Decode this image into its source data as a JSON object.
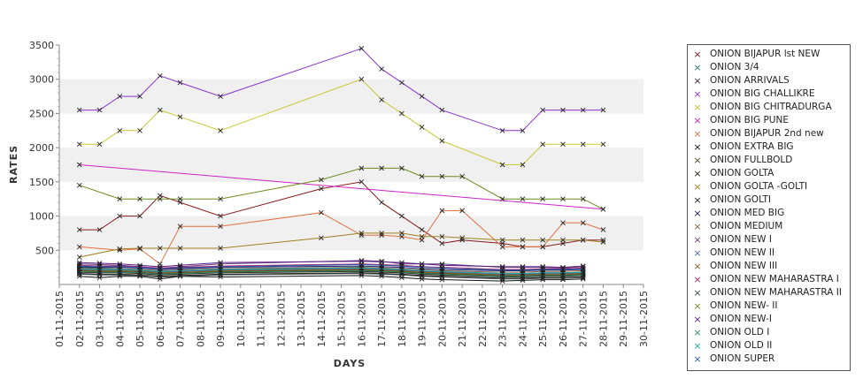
{
  "chart_data": {
    "type": "line",
    "title": "",
    "xlabel": "DAYS",
    "ylabel": "RATES",
    "ylim": [
      0,
      3500
    ],
    "yticks": [
      500,
      1000,
      1500,
      2000,
      2500,
      3000,
      3500
    ],
    "y_tick_labels": [
      "500",
      "1000",
      "1500",
      "2000",
      "2500",
      "3000",
      "3500"
    ],
    "x_tick_labels": [
      "01-11-2015",
      "02-11-2015",
      "03-11-2015",
      "04-11-2015",
      "05-11-2015",
      "06-11-2015",
      "07-11-2015",
      "08-11-2015",
      "09-11-2015",
      "10-11-2015",
      "11-11-2015",
      "12-11-2015",
      "13-11-2015",
      "14-11-2015",
      "15-11-2015",
      "16-11-2015",
      "17-11-2015",
      "18-11-2015",
      "19-11-2015",
      "20-11-2015",
      "21-11-2015",
      "22-11-2015",
      "23-11-2015",
      "24-11-2015",
      "25-11-2015",
      "26-11-2015",
      "27-11-2015",
      "28-11-2015",
      "29-11-2015",
      "30-11-2015"
    ],
    "grid": "alternating horizontal bands",
    "legend_position": "right",
    "marker": "x",
    "series": [
      {
        "name": "ONION BIJAPUR lst NEW",
        "color": "#8a1a1a",
        "x": [
          2,
          3,
          4,
          5,
          6,
          7,
          9,
          14,
          16,
          17,
          18,
          19,
          20,
          21,
          23,
          24,
          25,
          26,
          27,
          28
        ],
        "y": [
          800,
          800,
          1000,
          1000,
          1300,
          1200,
          1000,
          1400,
          1500,
          1200,
          1000,
          800,
          600,
          650,
          600,
          550,
          550,
          600,
          650,
          650
        ]
      },
      {
        "name": "ONION 3/4",
        "color": "#2a7a7a",
        "x": [
          2,
          3,
          4,
          5,
          6,
          7,
          9,
          16,
          17,
          18,
          19,
          20,
          23,
          24,
          25,
          26,
          27
        ],
        "y": [
          250,
          240,
          230,
          220,
          200,
          210,
          230,
          250,
          240,
          220,
          200,
          190,
          160,
          160,
          170,
          170,
          180
        ]
      },
      {
        "name": "ONION ARRIVALS",
        "color": "#3a1a3a",
        "x": [
          2,
          3,
          4,
          5,
          6,
          7,
          9,
          16,
          17,
          18,
          19,
          20,
          23,
          24,
          25,
          26,
          27
        ],
        "y": [
          230,
          220,
          210,
          200,
          190,
          200,
          210,
          230,
          220,
          210,
          190,
          180,
          150,
          150,
          160,
          160,
          170
        ]
      },
      {
        "name": "ONION BIG CHALLIKRE",
        "color": "#8833cc",
        "x": [
          2,
          3,
          4,
          5,
          6,
          7,
          9,
          16,
          17,
          18,
          19,
          20,
          23,
          24,
          25,
          26,
          27,
          28
        ],
        "y": [
          2550,
          2550,
          2750,
          2750,
          3050,
          2950,
          2750,
          3450,
          3150,
          2950,
          2750,
          2550,
          2250,
          2250,
          2550,
          2550,
          2550,
          2550
        ]
      },
      {
        "name": "ONION BIG CHITRADURGA",
        "color": "#c8c832",
        "x": [
          2,
          3,
          4,
          5,
          6,
          7,
          9,
          16,
          17,
          18,
          19,
          20,
          23,
          24,
          25,
          26,
          27,
          28
        ],
        "y": [
          2050,
          2050,
          2250,
          2250,
          2550,
          2450,
          2250,
          3000,
          2700,
          2500,
          2300,
          2100,
          1750,
          1750,
          2050,
          2050,
          2050,
          2050
        ]
      },
      {
        "name": "ONION BIG PUNE",
        "color": "#cc22cc",
        "x": [
          2,
          28
        ],
        "y": [
          1750,
          1100
        ]
      },
      {
        "name": "ONION BIJAPUR 2nd new",
        "color": "#e07040",
        "x": [
          2,
          4,
          5,
          6,
          7,
          9,
          14,
          16,
          17,
          18,
          19,
          20,
          21,
          23,
          24,
          25,
          26,
          27,
          28
        ],
        "y": [
          550,
          500,
          520,
          300,
          850,
          850,
          1050,
          720,
          720,
          700,
          650,
          1080,
          1080,
          550,
          550,
          550,
          900,
          900,
          800
        ]
      },
      {
        "name": "ONION EXTRA BIG",
        "color": "#111111",
        "x": [
          2,
          3,
          4,
          5,
          6,
          7,
          9,
          16,
          17,
          18,
          19,
          20,
          23,
          24,
          25,
          26,
          27
        ],
        "y": [
          120,
          100,
          120,
          120,
          80,
          120,
          110,
          130,
          120,
          100,
          80,
          70,
          50,
          60,
          70,
          70,
          80
        ]
      },
      {
        "name": "ONION FULLBOLD",
        "color": "#5a4a1a",
        "x": [
          2,
          3,
          4,
          5,
          6,
          7,
          9,
          16,
          17,
          18,
          19,
          20,
          23,
          24,
          25,
          26,
          27
        ],
        "y": [
          200,
          190,
          190,
          180,
          160,
          170,
          190,
          210,
          200,
          190,
          170,
          160,
          130,
          130,
          140,
          140,
          150
        ]
      },
      {
        "name": "ONION GOLTA",
        "color": "#2a1a0a",
        "x": [
          2,
          3,
          4,
          5,
          6,
          7,
          9,
          16,
          17,
          18,
          19,
          20,
          23,
          24,
          25,
          26,
          27
        ],
        "y": [
          180,
          170,
          170,
          160,
          140,
          150,
          170,
          190,
          180,
          170,
          150,
          140,
          110,
          110,
          120,
          120,
          130
        ]
      },
      {
        "name": "ONION GOLTA -GOLTI",
        "color": "#a08020",
        "x": [
          2,
          4,
          5,
          6,
          7,
          9,
          14,
          16,
          17,
          18,
          19,
          20,
          21,
          23,
          24,
          25,
          26,
          27,
          28
        ],
        "y": [
          400,
          520,
          530,
          530,
          530,
          530,
          680,
          750,
          750,
          750,
          700,
          700,
          680,
          650,
          650,
          650,
          650,
          650,
          620
        ]
      },
      {
        "name": "ONION GOLTI",
        "color": "#1a1a1a",
        "x": [
          2,
          3,
          4,
          5,
          6,
          7,
          9,
          16,
          17,
          18,
          19,
          20,
          23,
          24,
          25,
          26,
          27
        ],
        "y": [
          160,
          150,
          150,
          140,
          120,
          130,
          150,
          170,
          160,
          150,
          130,
          120,
          90,
          90,
          100,
          100,
          110
        ]
      },
      {
        "name": "ONION MED BIG",
        "color": "#1a1a6a",
        "x": [
          2,
          3,
          4,
          5,
          6,
          7,
          9,
          16,
          17,
          18,
          19,
          20,
          23,
          24,
          25,
          26,
          27
        ],
        "y": [
          260,
          250,
          250,
          240,
          220,
          230,
          250,
          270,
          260,
          250,
          230,
          220,
          200,
          200,
          210,
          210,
          220
        ]
      },
      {
        "name": "ONION MEDIUM",
        "color": "#8a5a3a",
        "x": [
          2,
          3,
          4,
          5,
          6,
          7,
          9,
          16,
          17,
          18,
          19,
          20,
          23,
          24,
          25,
          26,
          27
        ],
        "y": [
          240,
          230,
          230,
          220,
          200,
          210,
          230,
          250,
          240,
          230,
          210,
          200,
          180,
          180,
          190,
          190,
          200
        ]
      },
      {
        "name": "ONION NEW I",
        "color": "#6a3a7a",
        "x": [
          2,
          3,
          4,
          5,
          6,
          7,
          9,
          16,
          17,
          18,
          19,
          20,
          23,
          24,
          25,
          26,
          27
        ],
        "y": [
          300,
          290,
          280,
          260,
          240,
          260,
          300,
          350,
          340,
          300,
          300,
          300,
          250,
          250,
          250,
          240,
          260
        ]
      },
      {
        "name": "ONION NEW II",
        "color": "#4a6aaa",
        "x": [
          2,
          3,
          4,
          5,
          6,
          7,
          9,
          16,
          17,
          18,
          19,
          20,
          23,
          24,
          25,
          26,
          27
        ],
        "y": [
          220,
          210,
          210,
          200,
          180,
          190,
          210,
          230,
          220,
          210,
          190,
          180,
          150,
          150,
          160,
          160,
          170
        ]
      },
      {
        "name": "ONION NEW III",
        "color": "#8a5a1a",
        "x": [
          2,
          3,
          4,
          5,
          6,
          7,
          9,
          16,
          17,
          18,
          19,
          20,
          23,
          24,
          25,
          26,
          27
        ],
        "y": [
          210,
          200,
          200,
          190,
          170,
          180,
          200,
          220,
          210,
          200,
          180,
          170,
          140,
          140,
          150,
          150,
          160
        ]
      },
      {
        "name": "ONION NEW MAHARASTRA I",
        "color": "#aa2a6a",
        "x": [
          2,
          3,
          4,
          5,
          6,
          7,
          9,
          16,
          17,
          18,
          19,
          20,
          23,
          24,
          25,
          26,
          27
        ],
        "y": [
          280,
          270,
          270,
          260,
          240,
          250,
          270,
          300,
          290,
          280,
          260,
          250,
          220,
          220,
          230,
          230,
          240
        ]
      },
      {
        "name": "ONION NEW MAHARASTRA II",
        "color": "#3a4a4a",
        "x": [
          2,
          3,
          4,
          5,
          6,
          7,
          9,
          16,
          17,
          18,
          19,
          20,
          23,
          24,
          25,
          26,
          27
        ],
        "y": [
          150,
          140,
          140,
          130,
          110,
          120,
          140,
          160,
          150,
          140,
          120,
          110,
          80,
          80,
          90,
          90,
          100
        ]
      },
      {
        "name": "ONION NEW- II",
        "color": "#6a8a1a",
        "x": [
          2,
          4,
          5,
          6,
          7,
          9,
          14,
          16,
          17,
          18,
          19,
          20,
          21,
          23,
          24,
          25,
          26,
          27,
          28
        ],
        "y": [
          1450,
          1250,
          1250,
          1250,
          1250,
          1250,
          1530,
          1700,
          1700,
          1700,
          1580,
          1580,
          1580,
          1250,
          1250,
          1250,
          1250,
          1250,
          1100
        ]
      },
      {
        "name": "ONION NEW-I",
        "color": "#5a1a8a",
        "x": [
          2,
          3,
          4,
          5,
          6,
          7,
          9,
          16,
          17,
          18,
          19,
          20,
          23,
          24,
          25,
          26,
          27
        ],
        "y": [
          320,
          310,
          300,
          280,
          260,
          280,
          320,
          340,
          330,
          320,
          300,
          280,
          260,
          260,
          260,
          250,
          270
        ]
      },
      {
        "name": "ONION OLD I",
        "color": "#2a8a6a",
        "x": [
          2,
          3,
          4,
          5,
          6,
          7,
          9,
          16,
          17,
          18,
          19,
          20,
          23,
          24,
          25,
          26,
          27
        ],
        "y": [
          190,
          180,
          180,
          170,
          150,
          160,
          180,
          200,
          190,
          180,
          160,
          150,
          120,
          120,
          130,
          130,
          140
        ]
      },
      {
        "name": "ONION OLD II",
        "color": "#1aaaaa",
        "x": [
          2,
          3,
          4,
          5,
          6,
          7,
          9,
          16,
          17,
          18,
          19,
          20,
          23,
          24,
          25,
          26,
          27
        ],
        "y": [
          230,
          220,
          220,
          210,
          190,
          200,
          220,
          240,
          230,
          220,
          200,
          190,
          160,
          160,
          170,
          170,
          180
        ]
      },
      {
        "name": "ONION SUPER",
        "color": "#2a5aaa",
        "x": [
          2,
          3,
          4,
          5,
          6,
          7,
          9,
          16,
          17,
          18,
          19,
          20,
          23,
          24,
          25,
          26,
          27
        ],
        "y": [
          270,
          260,
          260,
          250,
          230,
          240,
          260,
          290,
          280,
          270,
          250,
          240,
          210,
          210,
          220,
          220,
          230
        ]
      }
    ]
  }
}
